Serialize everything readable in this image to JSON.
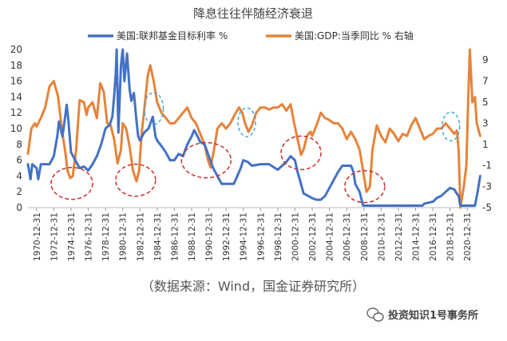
{
  "chart_data": {
    "type": "line",
    "title": "降息往往伴随经济衰退",
    "source": "（数据来源：Wind，国金证券研究所）",
    "watermark": "投资知识1号事务所",
    "x_range": [
      1970,
      2022
    ],
    "x_ticks": [
      "1970-12-31",
      "1972-12-31",
      "1974-12-31",
      "1976-12-31",
      "1978-12-31",
      "1980-12-31",
      "1982-12-31",
      "1984-12-31",
      "1986-12-31",
      "1988-12-31",
      "1990-12-31",
      "1992-12-31",
      "1994-12-31",
      "1996-12-31",
      "1998-12-31",
      "2000-12-31",
      "2002-12-31",
      "2004-12-31",
      "2006-12-31",
      "2008-12-31",
      "2010-12-31",
      "2012-12-31",
      "2014-12-31",
      "2016-12-31",
      "2018-12-31",
      "2020-12-31"
    ],
    "y_left": {
      "range": [
        0,
        20
      ],
      "ticks": [
        "0",
        "2",
        "4",
        "6",
        "8",
        "10",
        "12",
        "14",
        "16",
        "18",
        "20"
      ]
    },
    "y_right": {
      "range": [
        -5,
        10
      ],
      "ticks": [
        "-5",
        "-3",
        "-1",
        "1",
        "3",
        "5",
        "7",
        "9"
      ]
    },
    "series": [
      {
        "name": "美国:联邦基金目标利率 %",
        "color": "#4472C4",
        "axis": "left",
        "points": [
          [
            1970.0,
            5.5
          ],
          [
            1970.3,
            3.6
          ],
          [
            1970.5,
            5.5
          ],
          [
            1971.0,
            5.0
          ],
          [
            1971.2,
            3.6
          ],
          [
            1971.5,
            5.5
          ],
          [
            1972.5,
            5.5
          ],
          [
            1973.0,
            6.5
          ],
          [
            1973.4,
            9.0
          ],
          [
            1973.6,
            10.9
          ],
          [
            1973.8,
            10.0
          ],
          [
            1974.0,
            9.0
          ],
          [
            1974.2,
            10.5
          ],
          [
            1974.5,
            13.0
          ],
          [
            1974.7,
            11.0
          ],
          [
            1975.0,
            7.0
          ],
          [
            1975.5,
            6.0
          ],
          [
            1976.0,
            5.0
          ],
          [
            1976.5,
            5.2
          ],
          [
            1977.0,
            4.7
          ],
          [
            1977.5,
            5.5
          ],
          [
            1978.0,
            6.5
          ],
          [
            1978.5,
            8.0
          ],
          [
            1979.0,
            10.0
          ],
          [
            1979.5,
            10.5
          ],
          [
            1979.8,
            11.5
          ],
          [
            1980.0,
            14.0
          ],
          [
            1980.2,
            17.0
          ],
          [
            1980.3,
            20.0
          ],
          [
            1980.5,
            9.5
          ],
          [
            1980.8,
            18.0
          ],
          [
            1981.0,
            20.0
          ],
          [
            1981.2,
            16.0
          ],
          [
            1981.5,
            19.5
          ],
          [
            1981.8,
            15.0
          ],
          [
            1982.0,
            13.5
          ],
          [
            1982.3,
            14.5
          ],
          [
            1982.6,
            11.0
          ],
          [
            1982.8,
            9.0
          ],
          [
            1983.0,
            8.5
          ],
          [
            1983.5,
            9.5
          ],
          [
            1984.0,
            10.0
          ],
          [
            1984.5,
            11.5
          ],
          [
            1984.8,
            9.0
          ],
          [
            1985.0,
            8.5
          ],
          [
            1985.5,
            7.8
          ],
          [
            1986.0,
            7.0
          ],
          [
            1986.5,
            6.0
          ],
          [
            1987.0,
            6.0
          ],
          [
            1987.5,
            6.8
          ],
          [
            1988.0,
            6.5
          ],
          [
            1988.5,
            8.0
          ],
          [
            1989.0,
            9.0
          ],
          [
            1989.3,
            9.8
          ],
          [
            1989.7,
            9.0
          ],
          [
            1990.0,
            8.3
          ],
          [
            1990.5,
            8.0
          ],
          [
            1991.0,
            6.5
          ],
          [
            1991.5,
            5.0
          ],
          [
            1992.0,
            4.0
          ],
          [
            1992.5,
            3.0
          ],
          [
            1993.0,
            3.0
          ],
          [
            1993.9,
            3.0
          ],
          [
            1994.3,
            4.0
          ],
          [
            1994.7,
            5.0
          ],
          [
            1995.0,
            6.0
          ],
          [
            1995.5,
            5.8
          ],
          [
            1996.0,
            5.3
          ],
          [
            1997.0,
            5.5
          ],
          [
            1998.0,
            5.5
          ],
          [
            1998.7,
            5.0
          ],
          [
            1999.0,
            4.8
          ],
          [
            1999.5,
            5.3
          ],
          [
            2000.0,
            5.8
          ],
          [
            2000.5,
            6.5
          ],
          [
            2001.0,
            6.0
          ],
          [
            2001.3,
            4.5
          ],
          [
            2001.7,
            3.0
          ],
          [
            2002.0,
            1.8
          ],
          [
            2003.0,
            1.2
          ],
          [
            2003.5,
            1.0
          ],
          [
            2004.0,
            1.0
          ],
          [
            2004.5,
            1.5
          ],
          [
            2005.0,
            2.5
          ],
          [
            2005.5,
            3.5
          ],
          [
            2006.0,
            4.5
          ],
          [
            2006.5,
            5.3
          ],
          [
            2007.0,
            5.3
          ],
          [
            2007.5,
            5.3
          ],
          [
            2007.8,
            4.5
          ],
          [
            2008.0,
            3.0
          ],
          [
            2008.5,
            2.0
          ],
          [
            2008.9,
            0.25
          ],
          [
            2015.8,
            0.25
          ],
          [
            2016.0,
            0.5
          ],
          [
            2017.0,
            0.75
          ],
          [
            2017.5,
            1.25
          ],
          [
            2018.0,
            1.5
          ],
          [
            2018.5,
            2.0
          ],
          [
            2019.0,
            2.5
          ],
          [
            2019.5,
            2.3
          ],
          [
            2019.8,
            1.75
          ],
          [
            2020.0,
            1.5
          ],
          [
            2020.2,
            0.25
          ],
          [
            2021.9,
            0.25
          ],
          [
            2022.2,
            2.0
          ],
          [
            2022.5,
            4.0
          ]
        ]
      },
      {
        "name": "美国:GDP:当季同比 % 右轴",
        "color": "#E6833A",
        "axis": "right",
        "points": [
          [
            1970.0,
            0.1
          ],
          [
            1970.4,
            2.5
          ],
          [
            1970.8,
            3.0
          ],
          [
            1971.0,
            2.7
          ],
          [
            1971.5,
            3.5
          ],
          [
            1972.0,
            4.5
          ],
          [
            1972.5,
            6.5
          ],
          [
            1973.0,
            7.0
          ],
          [
            1973.5,
            5.5
          ],
          [
            1974.0,
            2.0
          ],
          [
            1974.3,
            0.5
          ],
          [
            1974.6,
            -1.5
          ],
          [
            1974.9,
            -2.2
          ],
          [
            1975.2,
            -2.0
          ],
          [
            1975.6,
            0.5
          ],
          [
            1976.0,
            5.2
          ],
          [
            1976.5,
            5.0
          ],
          [
            1976.8,
            3.8
          ],
          [
            1977.0,
            4.5
          ],
          [
            1977.5,
            5.0
          ],
          [
            1978.0,
            3.5
          ],
          [
            1978.4,
            6.8
          ],
          [
            1978.8,
            6.0
          ],
          [
            1979.2,
            3.0
          ],
          [
            1979.6,
            2.8
          ],
          [
            1980.0,
            1.5
          ],
          [
            1980.4,
            -0.8
          ],
          [
            1980.8,
            0.5
          ],
          [
            1981.0,
            3.0
          ],
          [
            1981.4,
            2.5
          ],
          [
            1981.8,
            0.8
          ],
          [
            1982.2,
            -1.5
          ],
          [
            1982.6,
            -2.5
          ],
          [
            1982.9,
            -1.5
          ],
          [
            1983.2,
            2.0
          ],
          [
            1983.6,
            5.0
          ],
          [
            1983.9,
            7.5
          ],
          [
            1984.2,
            8.5
          ],
          [
            1984.6,
            7.0
          ],
          [
            1985.0,
            5.0
          ],
          [
            1985.5,
            4.0
          ],
          [
            1986.0,
            3.5
          ],
          [
            1986.5,
            3.0
          ],
          [
            1987.0,
            3.0
          ],
          [
            1987.5,
            3.5
          ],
          [
            1988.0,
            4.0
          ],
          [
            1988.5,
            4.5
          ],
          [
            1989.0,
            3.5
          ],
          [
            1989.5,
            3.0
          ],
          [
            1990.0,
            2.0
          ],
          [
            1990.5,
            1.0
          ],
          [
            1990.9,
            -0.5
          ],
          [
            1991.2,
            -1.2
          ],
          [
            1991.6,
            0.5
          ],
          [
            1992.0,
            2.5
          ],
          [
            1992.5,
            3.0
          ],
          [
            1993.0,
            2.5
          ],
          [
            1993.5,
            3.0
          ],
          [
            1994.0,
            3.8
          ],
          [
            1994.5,
            4.5
          ],
          [
            1994.9,
            4.0
          ],
          [
            1995.2,
            3.0
          ],
          [
            1995.6,
            2.2
          ],
          [
            1996.0,
            2.8
          ],
          [
            1996.5,
            4.0
          ],
          [
            1997.0,
            4.5
          ],
          [
            1997.5,
            4.5
          ],
          [
            1998.0,
            4.3
          ],
          [
            1998.5,
            4.5
          ],
          [
            1999.0,
            4.5
          ],
          [
            1999.5,
            4.8
          ],
          [
            2000.0,
            4.2
          ],
          [
            2000.5,
            4.8
          ],
          [
            2000.9,
            3.0
          ],
          [
            2001.3,
            1.5
          ],
          [
            2001.7,
            0.0
          ],
          [
            2002.0,
            0.5
          ],
          [
            2002.4,
            1.8
          ],
          [
            2002.8,
            2.2
          ],
          [
            2003.0,
            1.8
          ],
          [
            2003.5,
            2.8
          ],
          [
            2004.0,
            4.0
          ],
          [
            2004.5,
            3.5
          ],
          [
            2005.0,
            3.3
          ],
          [
            2005.5,
            3.0
          ],
          [
            2006.0,
            3.0
          ],
          [
            2006.5,
            2.5
          ],
          [
            2007.0,
            1.5
          ],
          [
            2007.5,
            2.2
          ],
          [
            2008.0,
            1.5
          ],
          [
            2008.5,
            0.5
          ],
          [
            2008.9,
            -1.5
          ],
          [
            2009.3,
            -3.5
          ],
          [
            2009.7,
            -3.0
          ],
          [
            2010.0,
            0.5
          ],
          [
            2010.5,
            2.8
          ],
          [
            2011.0,
            1.8
          ],
          [
            2011.5,
            1.2
          ],
          [
            2012.0,
            2.5
          ],
          [
            2012.5,
            2.0
          ],
          [
            2013.0,
            1.3
          ],
          [
            2013.5,
            2.0
          ],
          [
            2014.0,
            1.8
          ],
          [
            2014.5,
            2.8
          ],
          [
            2015.0,
            3.5
          ],
          [
            2015.5,
            2.5
          ],
          [
            2016.0,
            1.5
          ],
          [
            2016.5,
            1.8
          ],
          [
            2017.0,
            2.0
          ],
          [
            2017.5,
            2.5
          ],
          [
            2018.0,
            2.5
          ],
          [
            2018.5,
            3.0
          ],
          [
            2019.0,
            2.5
          ],
          [
            2019.5,
            2.0
          ],
          [
            2019.8,
            2.3
          ],
          [
            2020.0,
            0.5
          ],
          [
            2020.2,
            -5.0
          ],
          [
            2020.6,
            -3.0
          ],
          [
            2020.9,
            -1.0
          ],
          [
            2021.1,
            5.0
          ],
          [
            2021.3,
            10.0
          ],
          [
            2021.6,
            5.0
          ],
          [
            2021.9,
            5.5
          ],
          [
            2022.1,
            3.0
          ],
          [
            2022.5,
            1.8
          ]
        ]
      }
    ],
    "annotations": {
      "recession_circles_red": 7,
      "peak_circles_blue": 3,
      "line_style": "dashed"
    }
  }
}
